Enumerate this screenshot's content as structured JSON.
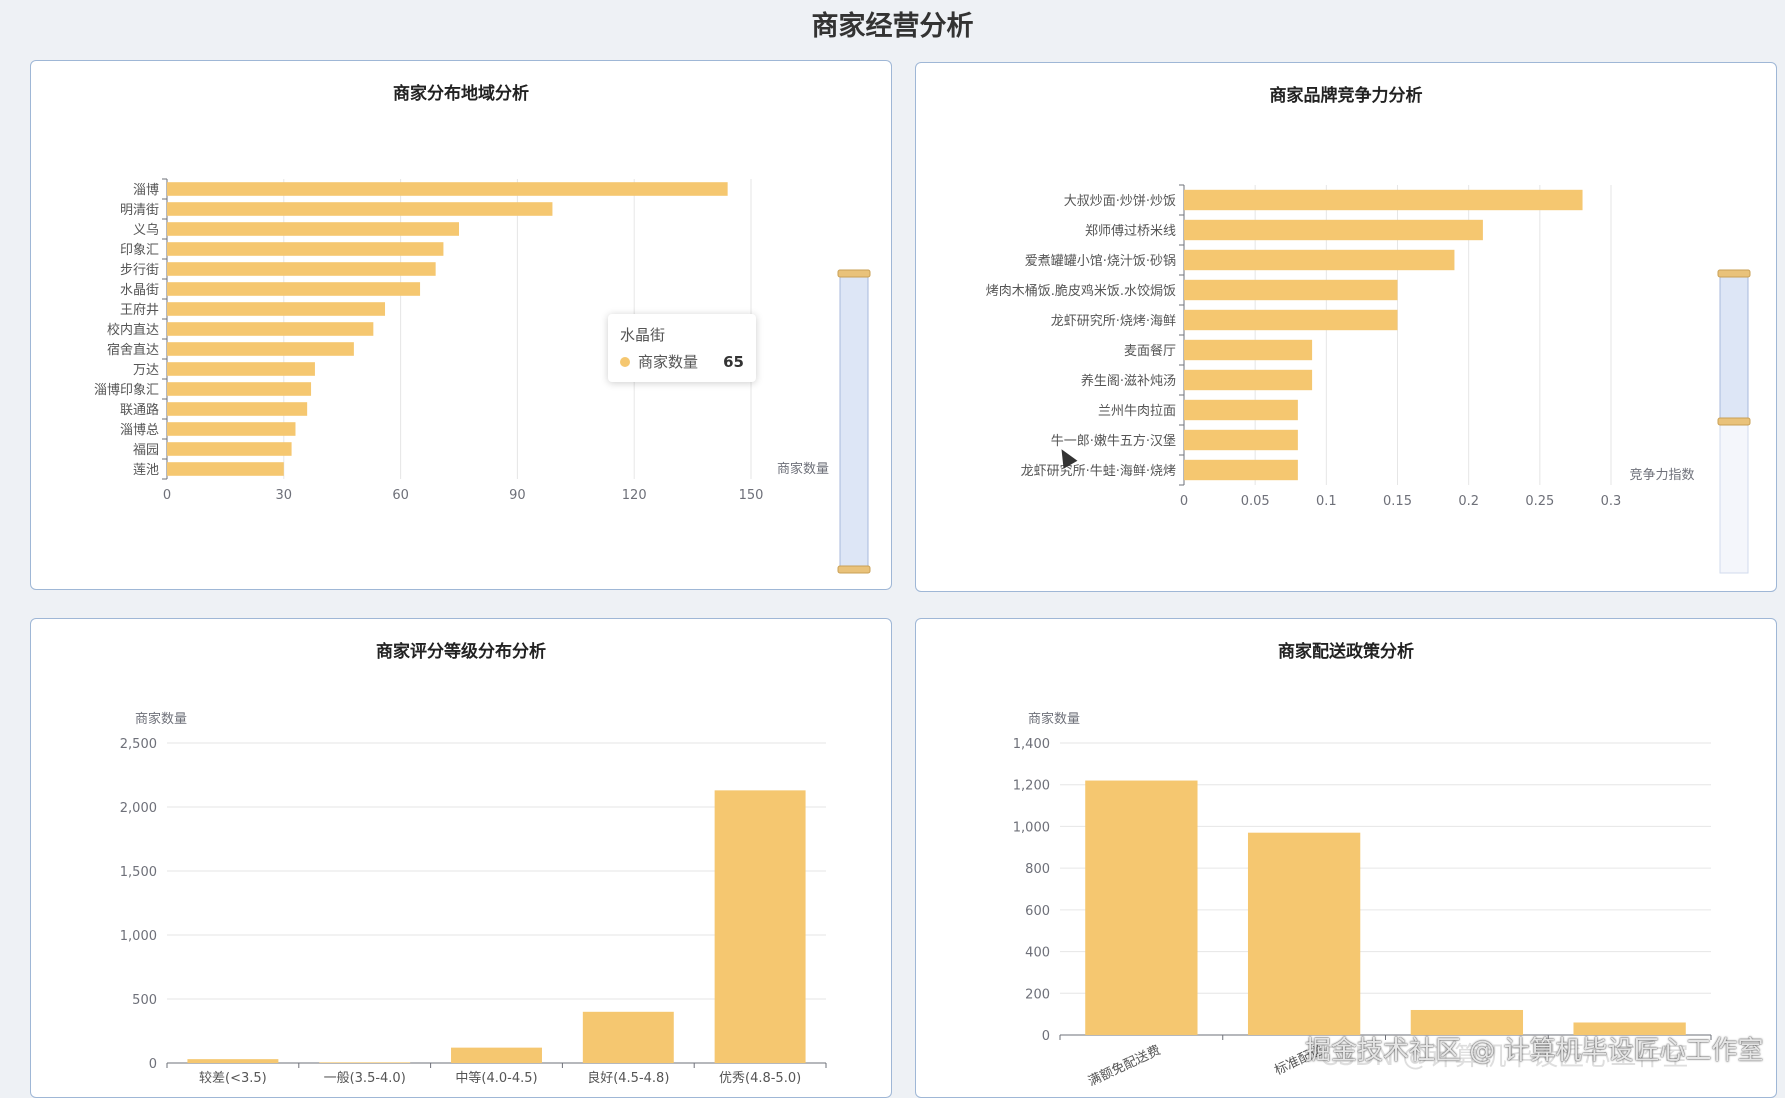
{
  "page": {
    "title": "商家经营分析"
  },
  "cards": [
    {
      "title": "商家分布地域分析"
    },
    {
      "title": "商家品牌竞争力分析"
    },
    {
      "title": "商家评分等级分布分析"
    },
    {
      "title": "商家配送政策分析"
    }
  ],
  "tooltip": {
    "category": "水晶街",
    "series": "商家数量",
    "value": "65"
  },
  "watermark": {
    "text": "掘金技术社区 @ 计算机毕设匠心工作室",
    "text2": "CSDN @计算机毕设匠心工作室"
  },
  "colors": {
    "bar": "#f5c770",
    "axis": "#6e7079",
    "grid": "#e6e6e6",
    "tooltip_dot": "#f5c770"
  },
  "chart_data": [
    {
      "type": "bar",
      "orientation": "horizontal",
      "categories": [
        "淄博",
        "明清街",
        "义乌",
        "印象汇",
        "步行街",
        "水晶街",
        "王府井",
        "校内直达",
        "宿舍直达",
        "万达",
        "淄博印象汇",
        "联通路",
        "淄博总",
        "福园",
        "莲池"
      ],
      "series": [
        {
          "name": "商家数量",
          "values": [
            144,
            99,
            75,
            71,
            69,
            65,
            56,
            53,
            48,
            38,
            37,
            36,
            33,
            32,
            30
          ]
        }
      ],
      "xlabel": "商家数量",
      "xlim": [
        0,
        150
      ],
      "xticks": [
        0,
        30,
        60,
        90,
        120,
        150
      ],
      "grid": true,
      "datazoom": "right"
    },
    {
      "type": "bar",
      "orientation": "horizontal",
      "categories": [
        "大叔炒面·炒饼·炒饭",
        "郑师傅过桥米线",
        "爱煮罐罐小馆·烧汁饭·砂锅",
        "烤肉木桶饭.脆皮鸡米饭.水饺焗饭",
        "龙虾研究所·烧烤·海鲜",
        "麦面餐厅",
        "养生阁·滋补炖汤",
        "兰州牛肉拉面",
        "牛一郎·嫩牛五方·汉堡",
        "龙虾研究所·牛蛙·海鲜·烧烤"
      ],
      "series": [
        {
          "name": "竞争力指数",
          "values": [
            0.28,
            0.21,
            0.19,
            0.15,
            0.15,
            0.09,
            0.09,
            0.08,
            0.08,
            0.08
          ]
        }
      ],
      "xlabel": "竞争力指数",
      "xlim": [
        0,
        0.3
      ],
      "xticks": [
        "0",
        "0.05",
        "0.1",
        "0.15",
        "0.2",
        "0.25",
        "0.3"
      ],
      "grid": true,
      "datazoom": "right"
    },
    {
      "type": "bar",
      "categories": [
        "较差(<3.5)",
        "一般(3.5-4.0)",
        "中等(4.0-4.5)",
        "良好(4.5-4.8)",
        "优秀(4.8-5.0)"
      ],
      "series": [
        {
          "name": "商家数量",
          "values": [
            30,
            5,
            120,
            400,
            2130
          ]
        }
      ],
      "ylabel": "商家数量",
      "ylim": [
        0,
        2500
      ],
      "yticks": [
        "0",
        "500",
        "1,000",
        "1,500",
        "2,000",
        "2,500"
      ],
      "grid": true
    },
    {
      "type": "bar",
      "categories": [
        "满额免配送费",
        "标准配送",
        "",
        ""
      ],
      "series": [
        {
          "name": "商家数量",
          "values": [
            1220,
            970,
            120,
            60
          ]
        }
      ],
      "ylabel": "商家数量",
      "ylim": [
        0,
        1400
      ],
      "yticks": [
        "0",
        "200",
        "400",
        "600",
        "800",
        "1,000",
        "1,200",
        "1,400"
      ],
      "grid": true
    }
  ]
}
